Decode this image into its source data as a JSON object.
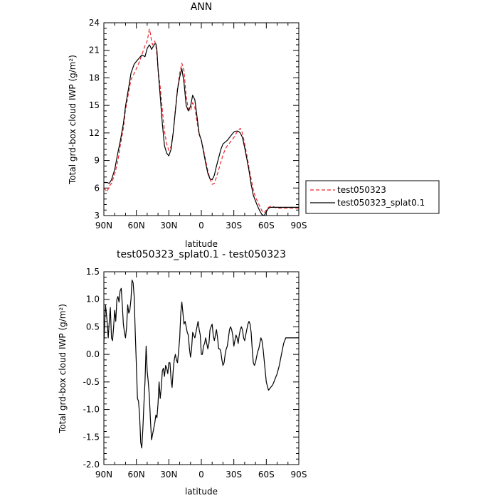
{
  "chart_data": [
    {
      "type": "line",
      "title": "ANN",
      "xlabel": "latitude",
      "ylabel": "Total grd-box cloud IWP (g/m²)",
      "xlim": [
        90,
        -90
      ],
      "ylim": [
        3,
        24
      ],
      "xticks": [
        90,
        60,
        30,
        0,
        -30,
        -60,
        -90
      ],
      "xticklabels": [
        "90N",
        "60N",
        "30N",
        "0",
        "30S",
        "60S",
        "90S"
      ],
      "yticks": [
        3,
        6,
        9,
        12,
        15,
        18,
        21,
        24
      ],
      "yticklabels": [
        "3",
        "6",
        "9",
        "12",
        "15",
        "18",
        "21",
        "24"
      ],
      "grid": false,
      "legend": "right",
      "series": [
        {
          "name": "test050323",
          "color": "#e8262b",
          "dash": "dashed",
          "x": [
            90,
            87,
            85,
            83,
            80,
            77,
            75,
            72,
            70,
            67,
            65,
            62,
            60,
            57,
            55,
            52,
            50,
            48,
            47,
            46,
            45,
            43,
            42,
            41,
            40,
            38,
            36,
            34,
            32,
            30,
            28,
            26,
            24,
            22,
            20,
            18,
            16,
            14,
            12,
            10,
            8,
            6,
            4,
            2,
            0,
            -2,
            -4,
            -6,
            -8,
            -10,
            -12,
            -14,
            -16,
            -18,
            -20,
            -22,
            -24,
            -26,
            -28,
            -30,
            -32,
            -34,
            -36,
            -38,
            -40,
            -42,
            -44,
            -46,
            -48,
            -50,
            -52,
            -54,
            -56,
            -58,
            -60,
            -62,
            -64,
            -66,
            -68,
            -70,
            -72,
            -74,
            -76,
            -78,
            -80,
            -82,
            -84,
            -86,
            -88,
            -90
          ],
          "values": [
            6.0,
            5.6,
            6.2,
            6.5,
            7.5,
            9.0,
            10.5,
            12.5,
            14.5,
            16.5,
            17.8,
            18.5,
            19.0,
            19.8,
            20.5,
            21.5,
            22.0,
            23.3,
            22.8,
            22.0,
            21.6,
            22.0,
            21.5,
            20.5,
            19.0,
            17.0,
            14.5,
            12.2,
            10.8,
            10.1,
            10.5,
            12.0,
            14.5,
            16.8,
            18.5,
            19.6,
            18.8,
            16.0,
            14.6,
            14.4,
            15.3,
            14.8,
            13.2,
            11.8,
            11.2,
            10.2,
            9.0,
            7.9,
            7.0,
            6.4,
            6.5,
            7.2,
            8.0,
            8.8,
            9.6,
            10.2,
            10.6,
            10.9,
            11.2,
            11.5,
            11.9,
            12.3,
            12.5,
            12.0,
            10.8,
            9.6,
            8.2,
            7.0,
            5.8,
            5.0,
            4.5,
            4.0,
            3.5,
            3.3,
            3.6,
            3.9,
            4.0,
            4.0,
            3.9,
            3.8,
            3.8,
            3.8,
            3.8,
            3.8,
            3.8,
            3.8,
            3.8,
            3.8,
            3.8,
            3.8
          ]
        },
        {
          "name": "test050323_splat0.1",
          "color": "#000000",
          "dash": "solid",
          "x": [
            90,
            87,
            85,
            83,
            80,
            77,
            75,
            72,
            70,
            67,
            65,
            62,
            60,
            57,
            55,
            52,
            50,
            48,
            47,
            46,
            45,
            43,
            42,
            41,
            40,
            38,
            36,
            34,
            32,
            30,
            28,
            26,
            24,
            22,
            20,
            18,
            16,
            14,
            12,
            10,
            8,
            6,
            4,
            2,
            0,
            -2,
            -4,
            -6,
            -8,
            -10,
            -12,
            -14,
            -16,
            -18,
            -20,
            -22,
            -24,
            -26,
            -28,
            -30,
            -32,
            -34,
            -36,
            -38,
            -40,
            -42,
            -44,
            -46,
            -48,
            -50,
            -52,
            -54,
            -56,
            -58,
            -60,
            -62,
            -64,
            -66,
            -68,
            -70,
            -72,
            -74,
            -76,
            -78,
            -80,
            -82,
            -84,
            -86,
            -88,
            -90
          ],
          "values": [
            6.6,
            6.6,
            6.5,
            6.9,
            8.0,
            9.9,
            11.0,
            13.0,
            14.9,
            17.0,
            18.5,
            19.5,
            19.8,
            20.2,
            20.5,
            20.3,
            21.2,
            21.6,
            21.4,
            21.1,
            21.3,
            21.7,
            21.7,
            21.0,
            19.0,
            16.0,
            13.0,
            10.6,
            9.8,
            9.5,
            10.2,
            12.0,
            14.4,
            16.7,
            18.1,
            19.0,
            17.5,
            15.0,
            14.4,
            14.9,
            16.1,
            15.6,
            13.8,
            11.9,
            11.2,
            10.0,
            8.7,
            7.6,
            7.0,
            6.9,
            7.4,
            8.4,
            9.3,
            10.2,
            10.8,
            11.0,
            11.2,
            11.5,
            11.8,
            12.1,
            12.2,
            12.2,
            12.0,
            11.5,
            10.4,
            9.2,
            7.9,
            6.4,
            5.2,
            4.6,
            4.0,
            3.5,
            3.1,
            3.0,
            3.4,
            3.8,
            3.9,
            3.9,
            3.9,
            3.9,
            3.9,
            3.9,
            3.9,
            3.9,
            3.9,
            3.9,
            3.9,
            3.9,
            3.9,
            3.9
          ]
        }
      ]
    },
    {
      "type": "line",
      "title": "test050323_splat0.1 - test050323",
      "xlabel": "latitude",
      "ylabel": "Total grd-box cloud IWP (g/m²)",
      "xlim": [
        90,
        -90
      ],
      "ylim": [
        -2.0,
        1.5
      ],
      "xticks": [
        90,
        60,
        30,
        0,
        -30,
        -60,
        -90
      ],
      "xticklabels": [
        "90N",
        "60N",
        "30N",
        "0",
        "30S",
        "60S",
        "90S"
      ],
      "yticks": [
        -2.0,
        -1.5,
        -1.0,
        -0.5,
        0.0,
        0.5,
        1.0,
        1.5
      ],
      "yticklabels": [
        "-2.0",
        "-1.5",
        "-1.0",
        "-0.5",
        "0.0",
        "0.5",
        "1.0",
        "1.5"
      ],
      "grid": false,
      "series": [
        {
          "color": "#000000",
          "dash": "solid",
          "x": [
            90,
            88.5,
            87,
            86,
            85,
            84,
            83,
            82,
            81,
            80,
            79,
            78,
            77,
            76,
            75,
            74,
            73,
            72,
            71,
            70,
            69,
            68,
            67,
            66,
            65,
            64,
            63,
            62,
            61,
            60,
            59,
            58,
            57,
            56,
            55,
            54,
            53,
            52,
            51,
            50,
            49,
            48,
            47,
            46,
            45,
            44,
            43,
            42,
            41,
            40,
            39,
            38,
            37,
            36,
            35,
            34,
            33,
            32,
            31,
            30,
            29,
            28,
            27,
            26,
            25,
            24,
            23,
            22,
            21,
            20,
            19,
            18,
            17,
            16,
            15,
            14,
            13,
            12,
            11,
            10,
            9,
            8,
            7,
            6,
            5,
            4,
            3,
            2,
            1,
            0,
            -1,
            -2,
            -3,
            -4,
            -5,
            -6,
            -7,
            -8,
            -9,
            -10,
            -11,
            -12,
            -13,
            -14,
            -15,
            -16,
            -17,
            -18,
            -19,
            -20,
            -21,
            -22,
            -23,
            -24,
            -25,
            -26,
            -27,
            -28,
            -29,
            -30,
            -31,
            -32,
            -33,
            -34,
            -35,
            -36,
            -37,
            -38,
            -39,
            -40,
            -41,
            -42,
            -43,
            -44,
            -45,
            -46,
            -47,
            -48,
            -49,
            -50,
            -51,
            -52,
            -53,
            -54,
            -55,
            -56,
            -57,
            -58,
            -59,
            -60,
            -62,
            -64,
            -66,
            -68,
            -70,
            -72,
            -74,
            -76,
            -78,
            -80,
            -82,
            -84,
            -86,
            -88,
            -90
          ],
          "values": [
            0.2,
            0.9,
            0.6,
            0.3,
            0.6,
            0.85,
            0.3,
            0.25,
            0.5,
            0.8,
            0.6,
            1.0,
            1.05,
            0.95,
            1.15,
            1.2,
            0.9,
            0.55,
            0.4,
            0.3,
            0.5,
            0.9,
            0.75,
            0.8,
            1.0,
            1.35,
            1.3,
            1.05,
            0.4,
            -0.2,
            -0.8,
            -0.85,
            -1.1,
            -1.6,
            -1.7,
            -1.35,
            -0.9,
            -0.5,
            0.15,
            -0.3,
            -0.5,
            -0.75,
            -1.2,
            -1.55,
            -1.45,
            -1.35,
            -1.25,
            -1.1,
            -1.15,
            -0.9,
            -0.5,
            -0.8,
            -0.6,
            -0.3,
            -0.25,
            -0.4,
            -0.2,
            -0.25,
            -0.35,
            -0.15,
            -0.15,
            -0.45,
            -0.6,
            -0.3,
            -0.1,
            0.0,
            -0.1,
            -0.15,
            0.05,
            0.3,
            0.75,
            0.95,
            0.75,
            0.55,
            0.6,
            0.5,
            0.4,
            0.35,
            0.1,
            -0.05,
            0.1,
            0.4,
            0.35,
            0.3,
            0.4,
            0.5,
            0.6,
            0.45,
            0.35,
            0.0,
            0.0,
            0.15,
            0.2,
            0.3,
            0.2,
            0.1,
            0.2,
            0.45,
            0.5,
            0.55,
            0.35,
            0.25,
            0.35,
            0.45,
            0.3,
            0.1,
            0.1,
            0.05,
            -0.1,
            -0.2,
            -0.15,
            0.0,
            0.1,
            0.15,
            0.3,
            0.45,
            0.5,
            0.45,
            0.35,
            0.15,
            0.25,
            0.35,
            0.3,
            0.2,
            0.35,
            0.45,
            0.5,
            0.45,
            0.3,
            0.25,
            0.35,
            0.45,
            0.55,
            0.6,
            0.55,
            0.4,
            0.1,
            -0.15,
            -0.2,
            -0.15,
            -0.05,
            0.05,
            0.1,
            0.2,
            0.3,
            0.25,
            0.1,
            -0.1,
            -0.3,
            -0.5,
            -0.65,
            -0.6,
            -0.55,
            -0.45,
            -0.35,
            -0.2,
            0.0,
            0.2,
            0.3,
            0.3,
            0.3,
            0.3,
            0.3,
            0.3,
            0.3
          ]
        }
      ]
    }
  ]
}
